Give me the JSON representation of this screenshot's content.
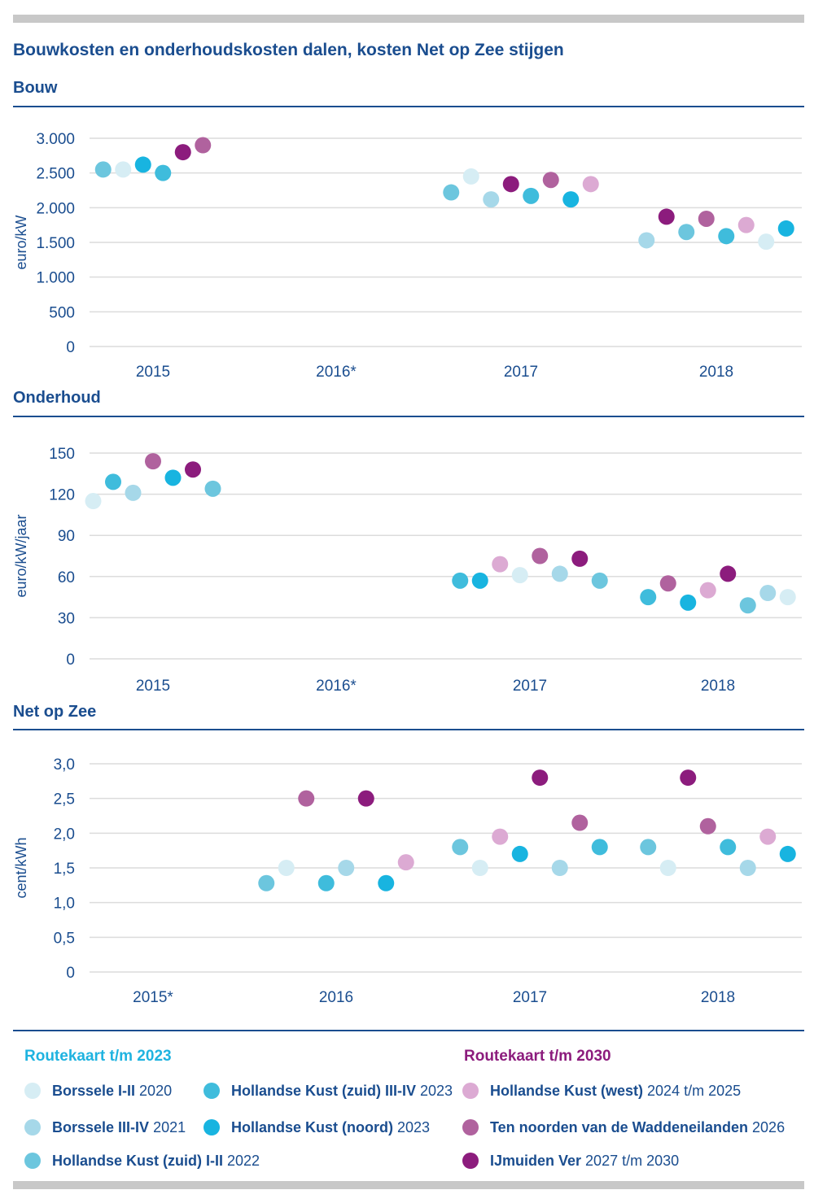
{
  "title": "Bouwkosten en onderhoudskosten dalen, kosten Net op Zee stijgen",
  "colors": {
    "borssele_1_2": "#d6edf4",
    "borssele_3_4": "#a6d8e9",
    "hk_zuid_1_2": "#6cc6de",
    "hk_zuid_3_4": "#3fbcdc",
    "hk_noord": "#18b4e0",
    "hk_west": "#dcaad3",
    "ten_noorden": "#b0629e",
    "ijmuiden": "#8c1c7d",
    "text_blue": "#1a4d8f",
    "heading_cyan": "#1fb3e0",
    "heading_purple": "#8c1c7d"
  },
  "legend": {
    "group_2023": "Routekaart t/m 2023",
    "group_2030": "Routekaart t/m 2030",
    "items": [
      {
        "key": "borssele_1_2",
        "name": "Borssele I-II",
        "year": "2020"
      },
      {
        "key": "borssele_3_4",
        "name": "Borssele III-IV",
        "year": "2021"
      },
      {
        "key": "hk_zuid_1_2",
        "name": "Hollandse Kust (zuid) I-II",
        "year": "2022"
      },
      {
        "key": "hk_zuid_3_4",
        "name": "Hollandse Kust (zuid) III-IV",
        "year": "2023"
      },
      {
        "key": "hk_noord",
        "name": "Hollandse Kust (noord)",
        "year": "2023"
      },
      {
        "key": "hk_west",
        "name": "Hollandse Kust (west)",
        "year": "2024 t/m 2025"
      },
      {
        "key": "ten_noorden",
        "name": "Ten noorden van de Waddeneilanden",
        "year": "2026"
      },
      {
        "key": "ijmuiden",
        "name": "IJmuiden Ver",
        "year": "2027 t/m 2030"
      }
    ]
  },
  "chart_data": [
    {
      "type": "scatter",
      "title": "Bouw",
      "ylabel": "euro/kW",
      "ylim": [
        0,
        3000
      ],
      "yticks": [
        0,
        500,
        1000,
        1500,
        2000,
        2500,
        3000
      ],
      "ytick_labels": [
        "0",
        "500",
        "1.000",
        "1.500",
        "2.000",
        "2.500",
        "3.000"
      ],
      "categories": [
        "2015",
        "2016*",
        "2017",
        "2018"
      ],
      "grid": true,
      "points": [
        {
          "category": "2015",
          "series": "hk_zuid_1_2",
          "value": 2550
        },
        {
          "category": "2015",
          "series": "borssele_1_2",
          "value": 2550
        },
        {
          "category": "2015",
          "series": "hk_noord",
          "value": 2620
        },
        {
          "category": "2015",
          "series": "hk_zuid_3_4",
          "value": 2500
        },
        {
          "category": "2015",
          "series": "ijmuiden",
          "value": 2800
        },
        {
          "category": "2015",
          "series": "ten_noorden",
          "value": 2900
        },
        {
          "category": "2017",
          "series": "hk_zuid_1_2",
          "value": 2220
        },
        {
          "category": "2017",
          "series": "borssele_1_2",
          "value": 2450
        },
        {
          "category": "2017",
          "series": "borssele_3_4",
          "value": 2120
        },
        {
          "category": "2017",
          "series": "ijmuiden",
          "value": 2340
        },
        {
          "category": "2017",
          "series": "hk_zuid_3_4",
          "value": 2170
        },
        {
          "category": "2017",
          "series": "ten_noorden",
          "value": 2400
        },
        {
          "category": "2017",
          "series": "hk_noord",
          "value": 2120
        },
        {
          "category": "2017",
          "series": "hk_west",
          "value": 2340
        },
        {
          "category": "2018",
          "series": "borssele_3_4",
          "value": 1530
        },
        {
          "category": "2018",
          "series": "ijmuiden",
          "value": 1870
        },
        {
          "category": "2018",
          "series": "hk_zuid_1_2",
          "value": 1650
        },
        {
          "category": "2018",
          "series": "ten_noorden",
          "value": 1840
        },
        {
          "category": "2018",
          "series": "hk_zuid_3_4",
          "value": 1590
        },
        {
          "category": "2018",
          "series": "hk_west",
          "value": 1750
        },
        {
          "category": "2018",
          "series": "borssele_1_2",
          "value": 1510
        },
        {
          "category": "2018",
          "series": "hk_noord",
          "value": 1700
        }
      ]
    },
    {
      "type": "scatter",
      "title": "Onderhoud",
      "ylabel": "euro/kW/jaar",
      "ylim": [
        0,
        150
      ],
      "yticks": [
        0,
        30,
        60,
        90,
        120,
        150
      ],
      "ytick_labels": [
        "0",
        "30",
        "60",
        "90",
        "120",
        "150"
      ],
      "categories": [
        "2015",
        "2016*",
        "2017",
        "2018"
      ],
      "grid": true,
      "points": [
        {
          "category": "2015",
          "series": "borssele_1_2",
          "value": 115
        },
        {
          "category": "2015",
          "series": "hk_zuid_3_4",
          "value": 129
        },
        {
          "category": "2015",
          "series": "borssele_3_4",
          "value": 121
        },
        {
          "category": "2015",
          "series": "ten_noorden",
          "value": 144
        },
        {
          "category": "2015",
          "series": "hk_noord",
          "value": 132
        },
        {
          "category": "2015",
          "series": "ijmuiden",
          "value": 138
        },
        {
          "category": "2015",
          "series": "hk_zuid_1_2",
          "value": 124
        },
        {
          "category": "2017",
          "series": "hk_zuid_3_4",
          "value": 57
        },
        {
          "category": "2017",
          "series": "hk_noord",
          "value": 57
        },
        {
          "category": "2017",
          "series": "hk_west",
          "value": 69
        },
        {
          "category": "2017",
          "series": "borssele_1_2",
          "value": 61
        },
        {
          "category": "2017",
          "series": "ten_noorden",
          "value": 75
        },
        {
          "category": "2017",
          "series": "borssele_3_4",
          "value": 62
        },
        {
          "category": "2017",
          "series": "ijmuiden",
          "value": 73
        },
        {
          "category": "2017",
          "series": "hk_zuid_1_2",
          "value": 57
        },
        {
          "category": "2018",
          "series": "hk_zuid_3_4",
          "value": 45
        },
        {
          "category": "2018",
          "series": "ten_noorden",
          "value": 55
        },
        {
          "category": "2018",
          "series": "hk_noord",
          "value": 41
        },
        {
          "category": "2018",
          "series": "hk_west",
          "value": 50
        },
        {
          "category": "2018",
          "series": "ijmuiden",
          "value": 62
        },
        {
          "category": "2018",
          "series": "hk_zuid_1_2",
          "value": 39
        },
        {
          "category": "2018",
          "series": "borssele_3_4",
          "value": 48
        },
        {
          "category": "2018",
          "series": "borssele_1_2",
          "value": 45
        }
      ]
    },
    {
      "type": "scatter",
      "title": "Net op Zee",
      "ylabel": "cent/kWh",
      "ylim": [
        0,
        3
      ],
      "yticks": [
        0,
        0.5,
        1,
        1.5,
        2,
        2.5,
        3
      ],
      "ytick_labels": [
        "0",
        "0,5",
        "1,0",
        "1,5",
        "2,0",
        "2,5",
        "3,0"
      ],
      "categories": [
        "2015*",
        "2016",
        "2017",
        "2018"
      ],
      "grid": true,
      "points": [
        {
          "category": "2016",
          "series": "hk_zuid_1_2",
          "value": 1.28
        },
        {
          "category": "2016",
          "series": "borssele_1_2",
          "value": 1.5
        },
        {
          "category": "2016",
          "series": "ten_noorden",
          "value": 2.5
        },
        {
          "category": "2016",
          "series": "hk_zuid_3_4",
          "value": 1.28
        },
        {
          "category": "2016",
          "series": "borssele_3_4",
          "value": 1.5
        },
        {
          "category": "2016",
          "series": "ijmuiden",
          "value": 2.5
        },
        {
          "category": "2016",
          "series": "hk_noord",
          "value": 1.28
        },
        {
          "category": "2016",
          "series": "hk_west",
          "value": 1.58
        },
        {
          "category": "2017",
          "series": "hk_zuid_1_2",
          "value": 1.8
        },
        {
          "category": "2017",
          "series": "borssele_1_2",
          "value": 1.5
        },
        {
          "category": "2017",
          "series": "hk_west",
          "value": 1.95
        },
        {
          "category": "2017",
          "series": "hk_noord",
          "value": 1.7
        },
        {
          "category": "2017",
          "series": "ijmuiden",
          "value": 2.8
        },
        {
          "category": "2017",
          "series": "borssele_3_4",
          "value": 1.5
        },
        {
          "category": "2017",
          "series": "ten_noorden",
          "value": 2.15
        },
        {
          "category": "2017",
          "series": "hk_zuid_3_4",
          "value": 1.8
        },
        {
          "category": "2018",
          "series": "hk_zuid_1_2",
          "value": 1.8
        },
        {
          "category": "2018",
          "series": "borssele_1_2",
          "value": 1.5
        },
        {
          "category": "2018",
          "series": "ijmuiden",
          "value": 2.8
        },
        {
          "category": "2018",
          "series": "ten_noorden",
          "value": 2.1
        },
        {
          "category": "2018",
          "series": "hk_zuid_3_4",
          "value": 1.8
        },
        {
          "category": "2018",
          "series": "borssele_3_4",
          "value": 1.5
        },
        {
          "category": "2018",
          "series": "hk_west",
          "value": 1.95
        },
        {
          "category": "2018",
          "series": "hk_noord",
          "value": 1.7
        }
      ]
    }
  ]
}
